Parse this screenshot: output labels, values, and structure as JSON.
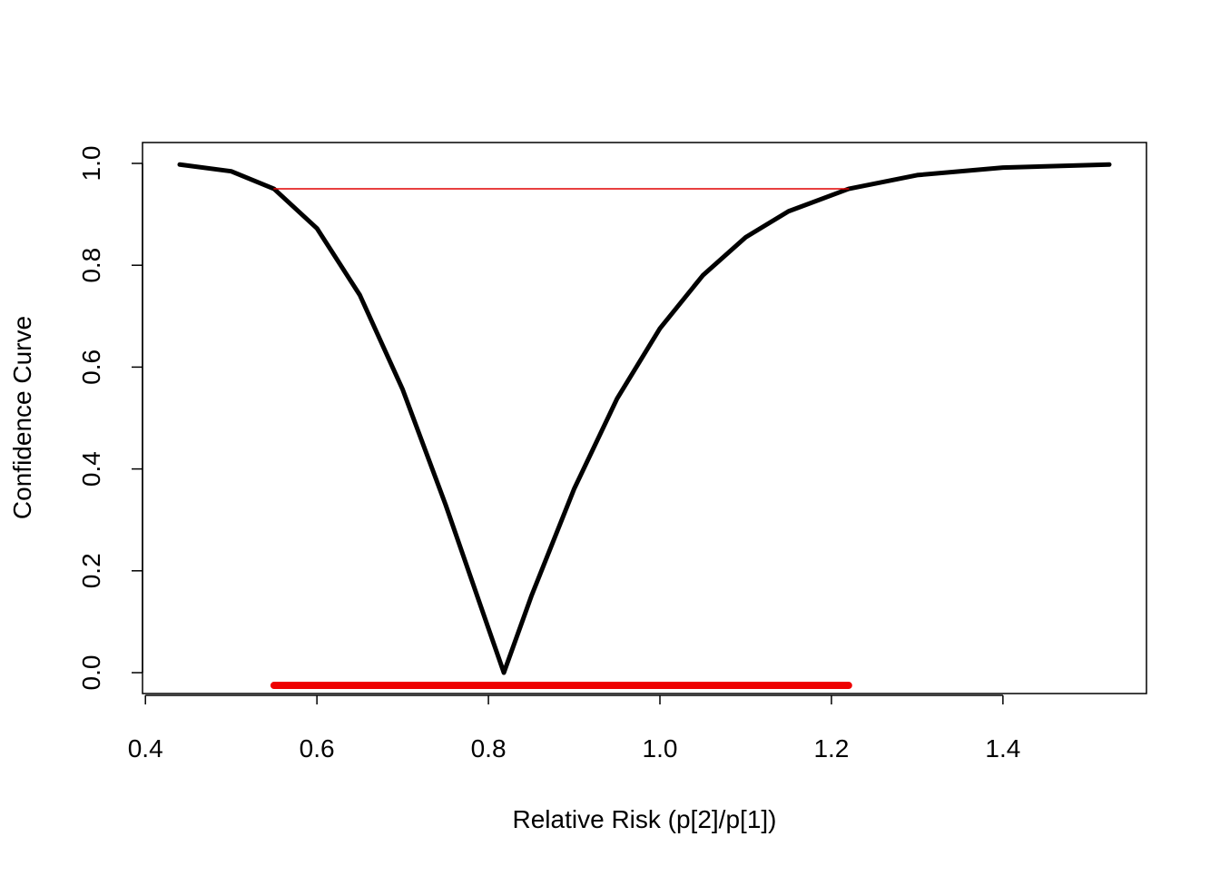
{
  "chart_data": {
    "type": "line",
    "xlabel": "Relative Risk (p[2]/p[1])",
    "ylabel": "Confidence Curve",
    "xlim": [
      0.3966,
      1.5674
    ],
    "ylim": [
      -0.041,
      1.041
    ],
    "xticks": [
      0.4,
      0.6,
      0.8,
      {
        "value": 1,
        "label": "1.0"
      },
      1.2,
      1.4
    ],
    "yticks": [
      {
        "value": 0,
        "label": "0.0"
      },
      0.2,
      0.4,
      0.6,
      0.8,
      {
        "value": 1,
        "label": "1.0"
      }
    ],
    "grid": false,
    "series": [
      {
        "color": "#000000",
        "x": [
          0.44,
          0.5,
          0.55,
          0.6,
          0.65,
          0.7,
          0.75,
          0.8,
          0.818,
          0.85,
          0.9,
          0.95,
          1.0,
          1.05,
          1.1,
          1.15,
          1.22,
          1.3,
          1.4,
          1.524
        ],
        "values": [
          0.9977,
          0.9845,
          0.95,
          0.8725,
          0.7415,
          0.556,
          0.33,
          0.087,
          0,
          0.15,
          0.361,
          0.538,
          0.676,
          0.78,
          0.855,
          0.906,
          0.95,
          0.977,
          0.9917,
          0.9978
        ]
      },
      {
        "color": "#e00000",
        "x": [
          0.55,
          1.22
        ],
        "values": [
          0.95,
          0.95
        ]
      },
      {
        "color": "#ee0000",
        "x": [
          0.55,
          1.22
        ],
        "values": [
          -0.025,
          -0.025
        ]
      }
    ]
  }
}
